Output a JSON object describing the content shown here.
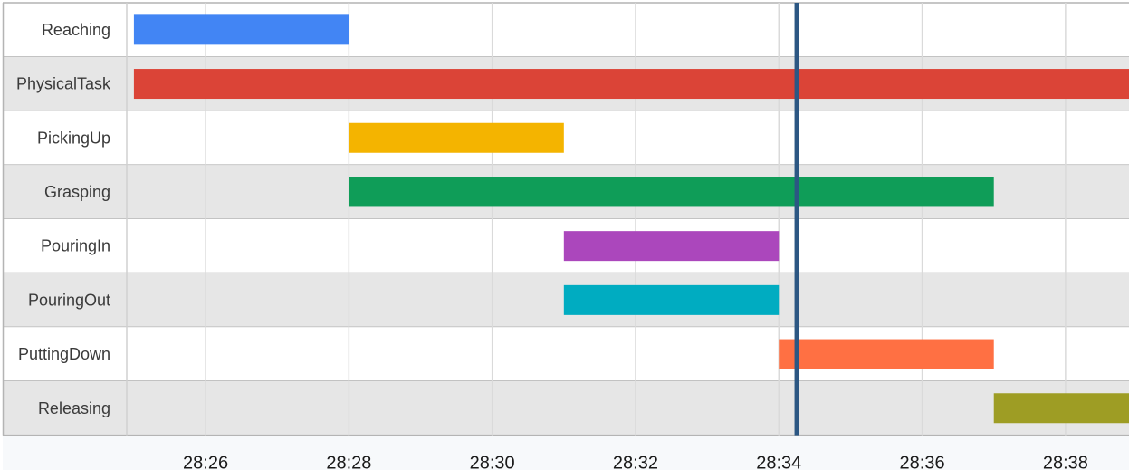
{
  "chart_data": {
    "type": "gantt",
    "title": "",
    "xlabel": "",
    "ylabel": "",
    "x_ticks": [
      "28:26",
      "28:28",
      "28:30",
      "28:32",
      "28:34",
      "28:36",
      "28:38"
    ],
    "xlim": [
      "28:24.9",
      "28:38.95"
    ],
    "grid": true,
    "current_time": "28:34.25",
    "tasks": [
      {
        "label": "Reaching",
        "start": "28:25.0",
        "end": "28:28.0",
        "color": "#4285f4"
      },
      {
        "label": "PhysicalTask",
        "start": "28:25.0",
        "end": "28:38.95",
        "color": "#db4437"
      },
      {
        "label": "PickingUp",
        "start": "28:28.0",
        "end": "28:31.0",
        "color": "#f4b400"
      },
      {
        "label": "Grasping",
        "start": "28:28.0",
        "end": "28:37.0",
        "color": "#0f9d58"
      },
      {
        "label": "PouringIn",
        "start": "28:31.0",
        "end": "28:34.0",
        "color": "#ab47bc"
      },
      {
        "label": "PouringOut",
        "start": "28:31.0",
        "end": "28:34.0",
        "color": "#00acc1"
      },
      {
        "label": "PuttingDown",
        "start": "28:34.0",
        "end": "28:37.0",
        "color": "#ff7043"
      },
      {
        "label": "Releasing",
        "start": "28:37.0",
        "end": "28:38.95",
        "color": "#9e9d24"
      }
    ],
    "row_colors": [
      "#ffffff",
      "#e6e6e6"
    ],
    "cursor_color": "#2c5783"
  }
}
